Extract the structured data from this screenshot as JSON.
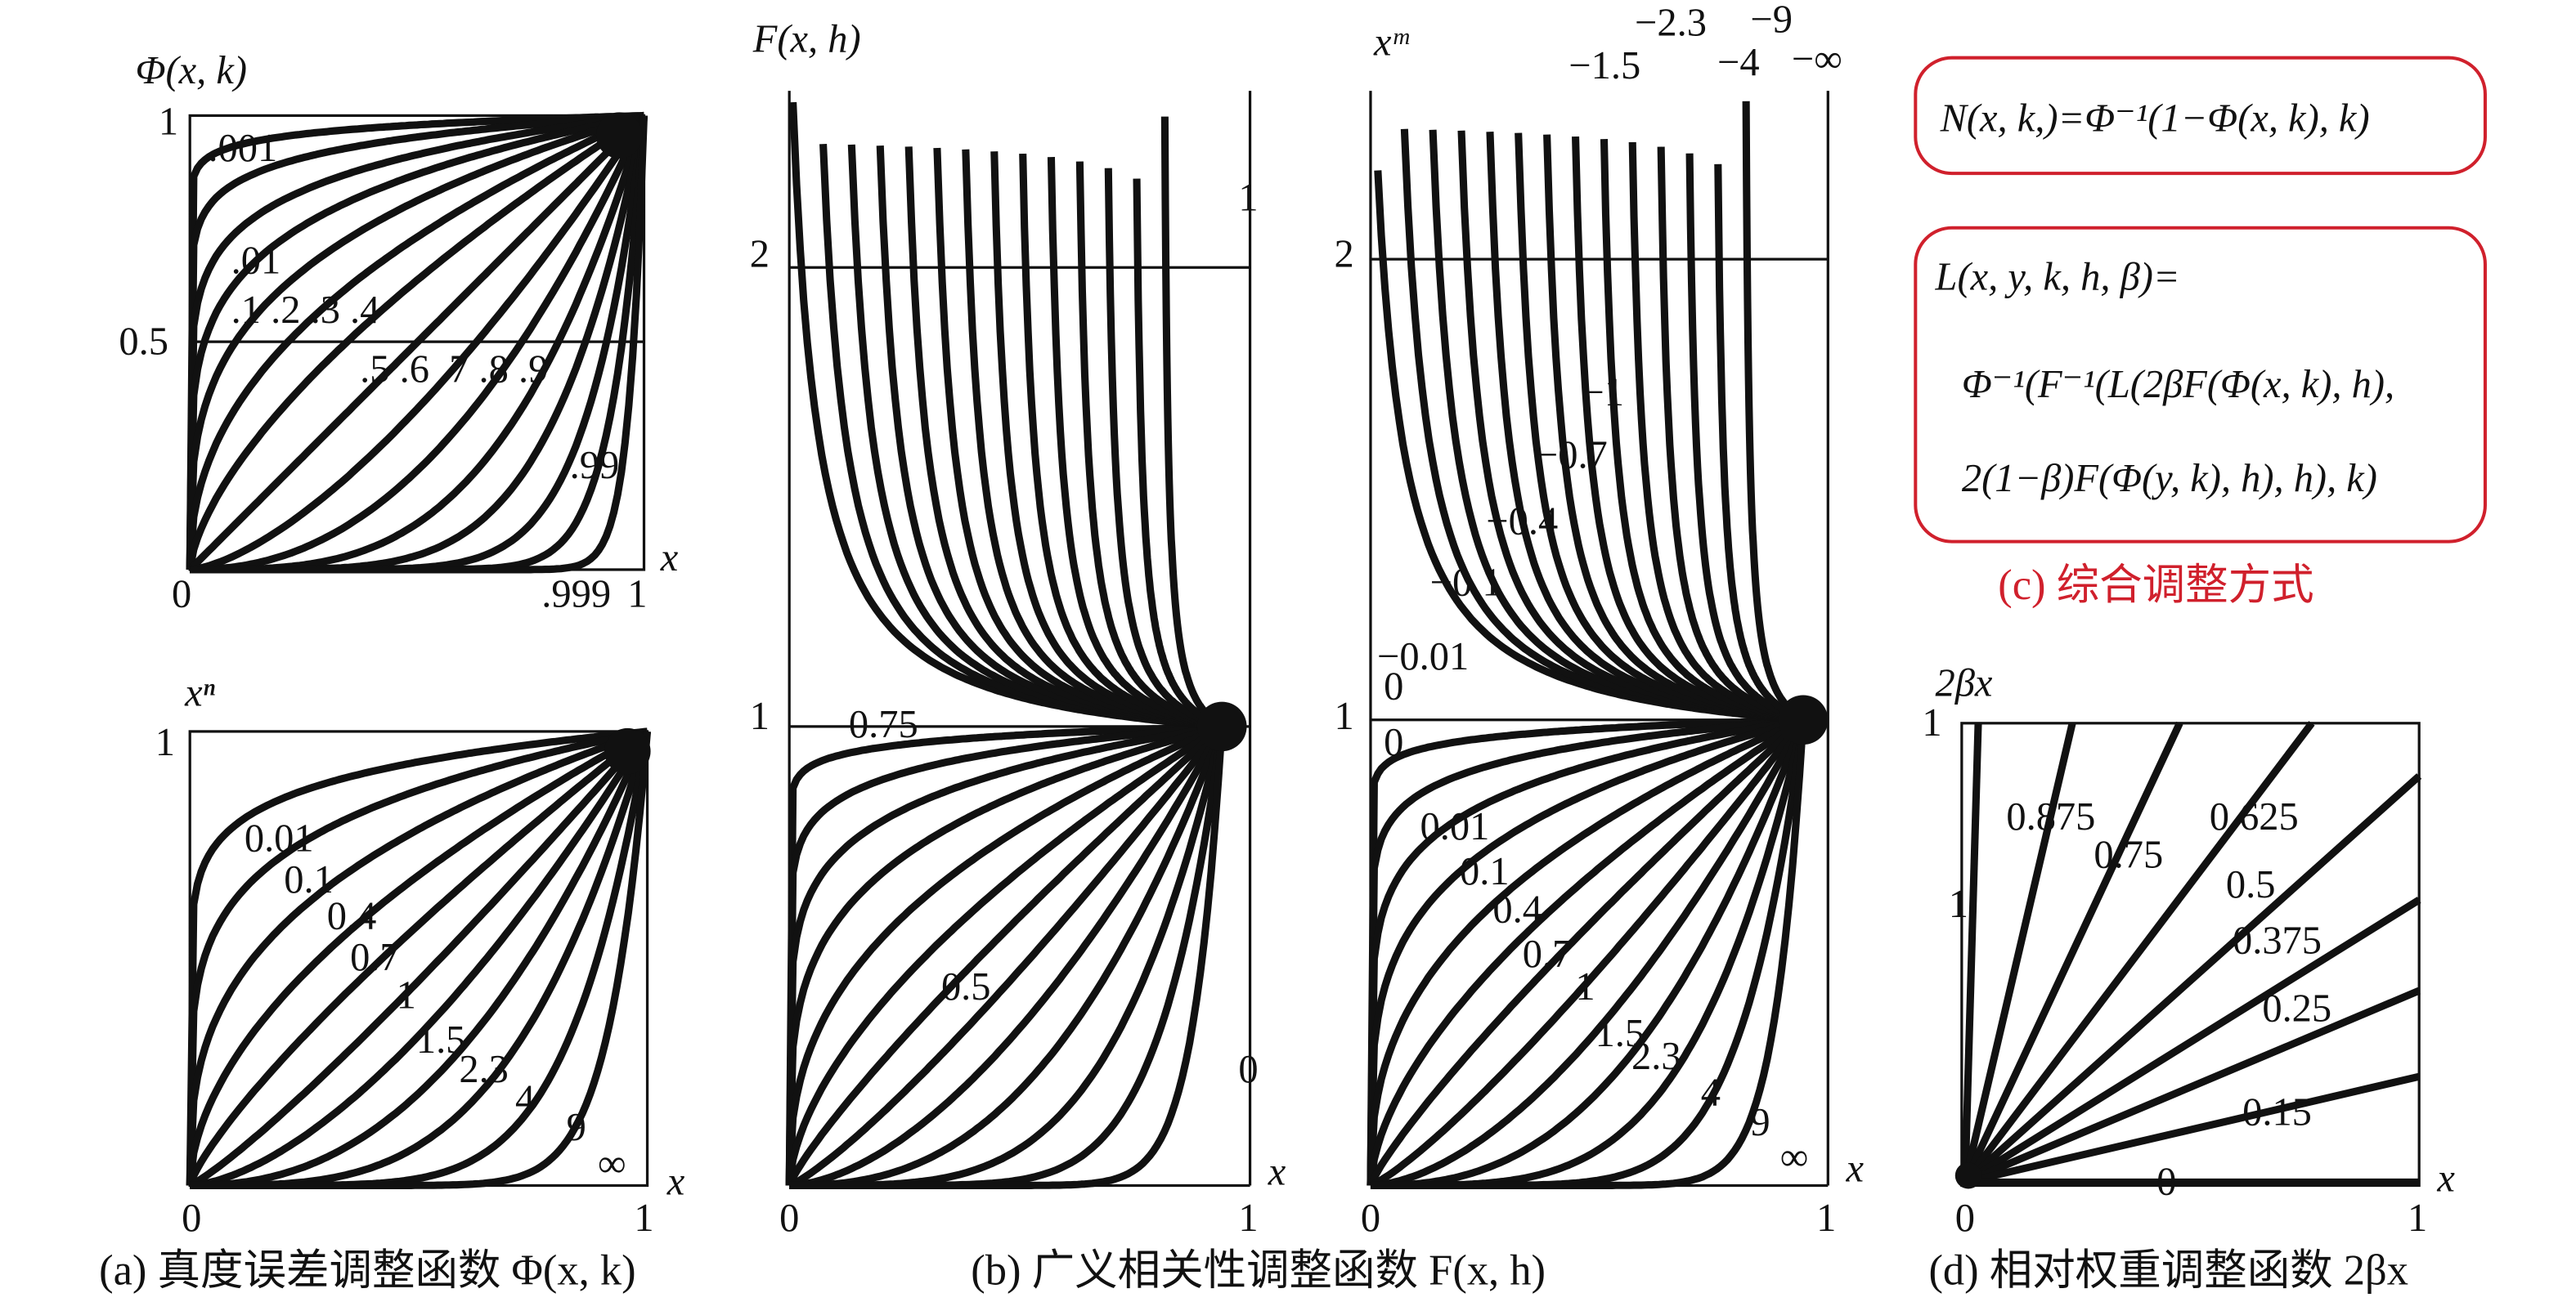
{
  "panel_a_top": {
    "y_label": "Φ(x, k)",
    "y_ticks": [
      "1",
      "0.5"
    ],
    "x_ticks": [
      "0",
      ".999",
      "1"
    ],
    "x_label": "x",
    "curve_labels": [
      ".001",
      ".01",
      ".1 .2 .3 .4",
      ".5 .6 .7 .8 .9",
      ".99"
    ]
  },
  "panel_a_bottom": {
    "y_label": "xⁿ",
    "y_ticks": [
      "1"
    ],
    "x_ticks": [
      "0",
      "1"
    ],
    "x_label": "x",
    "curve_labels": [
      "0.01",
      "0.1",
      "0.4",
      "0.7",
      "1",
      "1.5",
      "2.3",
      "4",
      "9",
      "∞"
    ]
  },
  "panel_b": {
    "y_label": "F(x, h)",
    "y_ticks": [
      "2",
      "1"
    ],
    "x_ticks": [
      "0",
      "1"
    ],
    "x_label": "x",
    "curve_labels": [
      "1",
      "0.75",
      "0.5",
      "0"
    ]
  },
  "panel_c": {
    "y_label": "xᵐ",
    "y_ticks": [
      "2",
      "1"
    ],
    "x_ticks": [
      "0",
      "1"
    ],
    "x_label": "x",
    "top_labels": [
      "−1.5",
      "−2.3",
      "−4",
      "−9",
      "−∞"
    ],
    "curve_labels": [
      "−1",
      "−0.7",
      "−0.4",
      "−0.1",
      "−0.01",
      "0",
      "0",
      "0.01",
      "0.1",
      "0.4",
      "0.7",
      "1",
      "1.5",
      "2.3",
      "4",
      "9",
      "∞"
    ]
  },
  "formulas": {
    "n": "N(x, k,)=Φ⁻¹(1−Φ(x, k), k)",
    "l": [
      "L(x, y, k, h, β)=",
      "Φ⁻¹(F⁻¹(L(2βF(Φ(x, k), h),",
      "2(1−β)F(Φ(y, k), h), h), k)"
    ],
    "caption": "(c) 综合调整方式"
  },
  "panel_d": {
    "y_label": "2βx",
    "y_ticks": [
      "1"
    ],
    "x_ticks": [
      "0",
      "1"
    ],
    "x_label": "x",
    "curve_labels": [
      "1",
      "0.875",
      "0.75",
      "0.625",
      "0.5",
      "0.375",
      "0.25",
      "0.15",
      "0"
    ]
  },
  "captions": [
    "(a) 真度误差调整函数 Φ(x, k)",
    "(b) 广义相关性调整函数 F(x, h)",
    "(d) 相对权重调整函数 2βx"
  ]
}
